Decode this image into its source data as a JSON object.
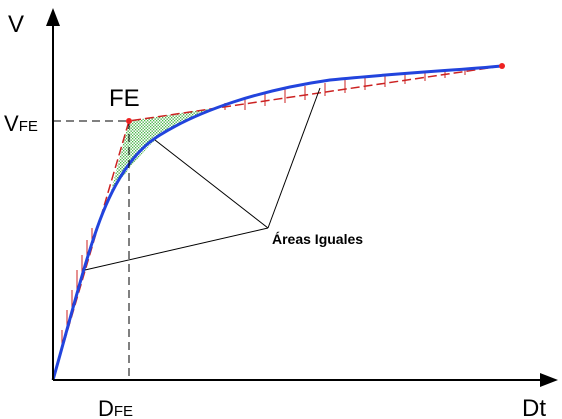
{
  "axes": {
    "y_label": "V",
    "x_label": "Dt"
  },
  "point_label": "FE",
  "vfe_label": {
    "main": "V",
    "sub": "FE"
  },
  "dfe_label": {
    "main": "D",
    "sub": "FE"
  },
  "annotation": "Áreas Iguales",
  "colors": {
    "curve": "#2244dd",
    "bilinear": "#cc2222",
    "hatch_fill": "#44bb44",
    "points": "#ee2222",
    "axes": "#000000"
  }
}
